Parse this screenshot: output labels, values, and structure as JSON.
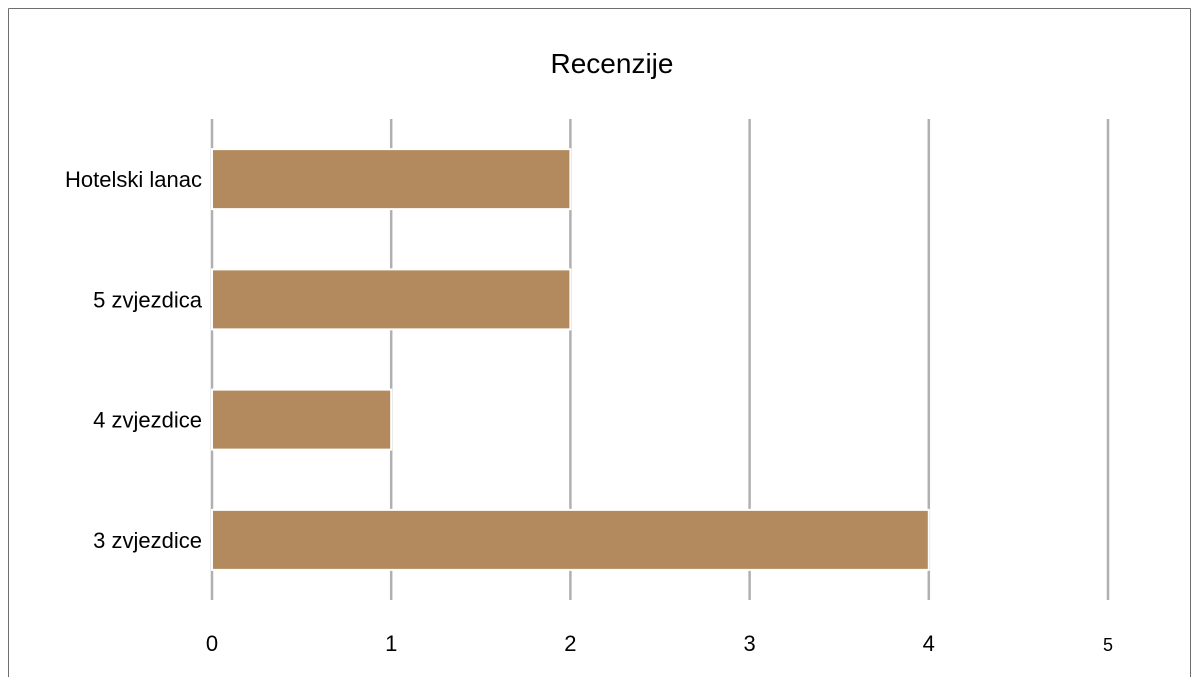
{
  "chart_data": {
    "type": "bar",
    "orientation": "horizontal",
    "title": "Recenzije",
    "xlabel": "",
    "ylabel": "",
    "categories": [
      "3 zvjezdice",
      "4 zvjezdice",
      "5 zvjezdica",
      "Hotelski lanac"
    ],
    "values": [
      4,
      1,
      2,
      2
    ],
    "xlim": [
      0,
      5
    ],
    "x_ticks": [
      "0",
      "1",
      "2",
      "3",
      "4",
      "5"
    ],
    "grid": "vertical",
    "legend": "none",
    "colors": {
      "bar": "#b38a5d",
      "grid": "#b0b0b0",
      "frame": "#6e6e6e"
    }
  }
}
